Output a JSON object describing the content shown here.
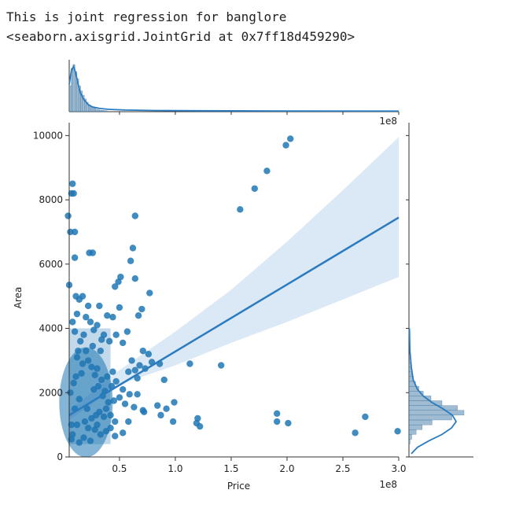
{
  "output": {
    "line1": "This is joint regression for banglore",
    "line2": "<seaborn.axisgrid.JointGrid at 0x7ff18d459290>"
  },
  "chart_data": {
    "type": "scatter",
    "kind": "joint regression with marginal histograms and KDE",
    "xlabel": "Price",
    "ylabel": "Area",
    "x_offset_label": "1e8",
    "x_scale": 100000000,
    "xlim": [
      0.05,
      3.0
    ],
    "ylim": [
      0,
      10400
    ],
    "x_ticks": [
      0.5,
      1.0,
      1.5,
      2.0,
      2.5,
      3.0
    ],
    "x_tick_labels": [
      "0.5",
      "1.0",
      "1.5",
      "2.0",
      "2.5",
      "3.0"
    ],
    "y_ticks": [
      0,
      2000,
      4000,
      6000,
      8000,
      10000
    ],
    "y_tick_labels": [
      "0",
      "2000",
      "4000",
      "6000",
      "8000",
      "10000"
    ],
    "colors": {
      "points": "#1f77b4",
      "line": "#2a7bbf",
      "band": "#cfe0f1",
      "hist": "#5f8fb5"
    },
    "regression": {
      "x": [
        0.05,
        3.0
      ],
      "y": [
        1300,
        7450
      ]
    },
    "confidence_band": {
      "x": [
        0.05,
        0.5,
        1.0,
        1.5,
        2.0,
        2.5,
        3.0
      ],
      "upper": [
        1450,
        2700,
        3900,
        5200,
        6700,
        8300,
        9950
      ],
      "lower": [
        1150,
        2250,
        2850,
        3550,
        4200,
        4900,
        5600
      ]
    },
    "points": [
      [
        2.03,
        9900
      ],
      [
        1.99,
        9700
      ],
      [
        1.82,
        8900
      ],
      [
        1.71,
        8350
      ],
      [
        1.58,
        7700
      ],
      [
        0.08,
        8500
      ],
      [
        0.07,
        8200
      ],
      [
        0.09,
        8200
      ],
      [
        0.04,
        7500
      ],
      [
        0.06,
        7000
      ],
      [
        0.1,
        7000
      ],
      [
        0.64,
        7500
      ],
      [
        0.23,
        6350
      ],
      [
        0.26,
        6350
      ],
      [
        0.62,
        6500
      ],
      [
        0.6,
        6100
      ],
      [
        0.1,
        6200
      ],
      [
        0.64,
        5550
      ],
      [
        0.51,
        5600
      ],
      [
        0.49,
        5450
      ],
      [
        0.46,
        5300
      ],
      [
        0.77,
        5100
      ],
      [
        0.05,
        5350
      ],
      [
        0.11,
        5000
      ],
      [
        0.17,
        5000
      ],
      [
        0.22,
        4700
      ],
      [
        0.32,
        4700
      ],
      [
        0.14,
        4900
      ],
      [
        0.7,
        4600
      ],
      [
        0.5,
        4650
      ],
      [
        0.39,
        4400
      ],
      [
        0.44,
        4350
      ],
      [
        0.67,
        4400
      ],
      [
        0.12,
        4450
      ],
      [
        0.2,
        4350
      ],
      [
        0.3,
        4100
      ],
      [
        0.24,
        4200
      ],
      [
        0.27,
        3950
      ],
      [
        0.57,
        3900
      ],
      [
        0.36,
        3800
      ],
      [
        0.47,
        3800
      ],
      [
        0.34,
        3650
      ],
      [
        0.41,
        3600
      ],
      [
        0.53,
        3550
      ],
      [
        0.18,
        3800
      ],
      [
        0.08,
        4200
      ],
      [
        0.26,
        3450
      ],
      [
        0.33,
        3300
      ],
      [
        0.71,
        3300
      ],
      [
        0.76,
        3200
      ],
      [
        0.86,
        2900
      ],
      [
        0.79,
        2950
      ],
      [
        0.68,
        2850
      ],
      [
        0.73,
        2750
      ],
      [
        0.61,
        3000
      ],
      [
        0.64,
        2700
      ],
      [
        0.66,
        2450
      ],
      [
        0.58,
        2650
      ],
      [
        0.44,
        2650
      ],
      [
        0.39,
        2500
      ],
      [
        0.47,
        2350
      ],
      [
        0.43,
        2200
      ],
      [
        0.9,
        2400
      ],
      [
        0.53,
        2100
      ],
      [
        0.37,
        2050
      ],
      [
        0.59,
        1950
      ],
      [
        0.66,
        1950
      ],
      [
        0.5,
        1850
      ],
      [
        0.45,
        1750
      ],
      [
        0.55,
        1650
      ],
      [
        0.63,
        1550
      ],
      [
        0.71,
        1450
      ],
      [
        0.72,
        1400
      ],
      [
        0.84,
        1600
      ],
      [
        0.92,
        1500
      ],
      [
        0.99,
        1700
      ],
      [
        0.87,
        1300
      ],
      [
        0.98,
        1100
      ],
      [
        0.46,
        1100
      ],
      [
        0.58,
        1100
      ],
      [
        0.42,
        900
      ],
      [
        0.38,
        800
      ],
      [
        0.46,
        650
      ],
      [
        0.53,
        750
      ],
      [
        0.33,
        700
      ],
      [
        0.24,
        500
      ],
      [
        0.14,
        450
      ],
      [
        0.07,
        550
      ],
      [
        0.18,
        600
      ],
      [
        0.28,
        850
      ],
      [
        1.13,
        2900
      ],
      [
        1.41,
        2850
      ],
      [
        1.2,
        1200
      ],
      [
        1.19,
        1050
      ],
      [
        1.22,
        950
      ],
      [
        1.91,
        1350
      ],
      [
        1.91,
        1100
      ],
      [
        2.01,
        1050
      ],
      [
        2.7,
        1250
      ],
      [
        2.61,
        750
      ],
      [
        2.99,
        800
      ],
      [
        0.1,
        3900
      ],
      [
        0.15,
        3600
      ],
      [
        0.2,
        3300
      ],
      [
        0.12,
        3100
      ],
      [
        0.17,
        2900
      ],
      [
        0.22,
        3000
      ],
      [
        0.25,
        2800
      ],
      [
        0.3,
        2750
      ],
      [
        0.16,
        2600
      ],
      [
        0.28,
        2550
      ],
      [
        0.34,
        2400
      ],
      [
        0.09,
        2300
      ],
      [
        0.31,
        2200
      ],
      [
        0.27,
        2100
      ],
      [
        0.35,
        1900
      ],
      [
        0.4,
        1700
      ],
      [
        0.38,
        1500
      ],
      [
        0.32,
        1400
      ],
      [
        0.29,
        1300
      ],
      [
        0.36,
        1250
      ],
      [
        0.25,
        1200
      ],
      [
        0.42,
        1300
      ],
      [
        0.3,
        1000
      ],
      [
        0.22,
        900
      ],
      [
        0.19,
        1100
      ],
      [
        0.12,
        1000
      ],
      [
        0.1,
        1500
      ],
      [
        0.14,
        1800
      ],
      [
        0.06,
        2000
      ],
      [
        0.07,
        1000
      ],
      [
        0.08,
        700
      ],
      [
        0.11,
        2500
      ],
      [
        0.13,
        3300
      ],
      [
        0.21,
        1500
      ]
    ],
    "top_histogram": {
      "bin_edges": [
        0.05,
        0.067,
        0.084,
        0.101,
        0.118,
        0.135,
        0.152,
        0.169,
        0.186,
        0.203,
        0.22,
        0.237,
        0.254,
        0.271,
        0.288,
        0.305,
        0.322,
        0.339,
        0.356,
        0.373,
        0.39
      ],
      "counts": [
        55,
        92,
        100,
        85,
        70,
        55,
        44,
        35,
        27,
        20,
        15,
        11,
        9,
        7,
        5,
        4,
        3,
        3,
        2,
        2
      ]
    },
    "top_kde": {
      "x": [
        0.05,
        0.07,
        0.09,
        0.11,
        0.13,
        0.15,
        0.18,
        0.22,
        0.26,
        0.32,
        0.4,
        0.55,
        0.8,
        1.2,
        2.0,
        3.0
      ],
      "density": [
        0.58,
        0.88,
        0.96,
        0.8,
        0.58,
        0.4,
        0.26,
        0.15,
        0.1,
        0.07,
        0.05,
        0.035,
        0.025,
        0.02,
        0.015,
        0.012
      ]
    },
    "right_histogram": {
      "bin_edges": [
        400,
        550,
        700,
        850,
        1000,
        1150,
        1300,
        1450,
        1600,
        1750,
        1900,
        2050,
        2200,
        2350,
        2500,
        2650,
        2800,
        2950,
        3100
      ],
      "counts": [
        2,
        5,
        13,
        24,
        42,
        78,
        100,
        88,
        60,
        40,
        26,
        18,
        12,
        8,
        5,
        3,
        2,
        1
      ]
    },
    "right_kde": {
      "y": [
        100,
        300,
        500,
        700,
        900,
        1100,
        1300,
        1500,
        1700,
        1900,
        2100,
        2400,
        2800,
        3300,
        4000
      ],
      "density": [
        0.05,
        0.18,
        0.42,
        0.7,
        0.9,
        1.0,
        0.92,
        0.72,
        0.48,
        0.3,
        0.18,
        0.09,
        0.05,
        0.02,
        0.01
      ]
    }
  }
}
